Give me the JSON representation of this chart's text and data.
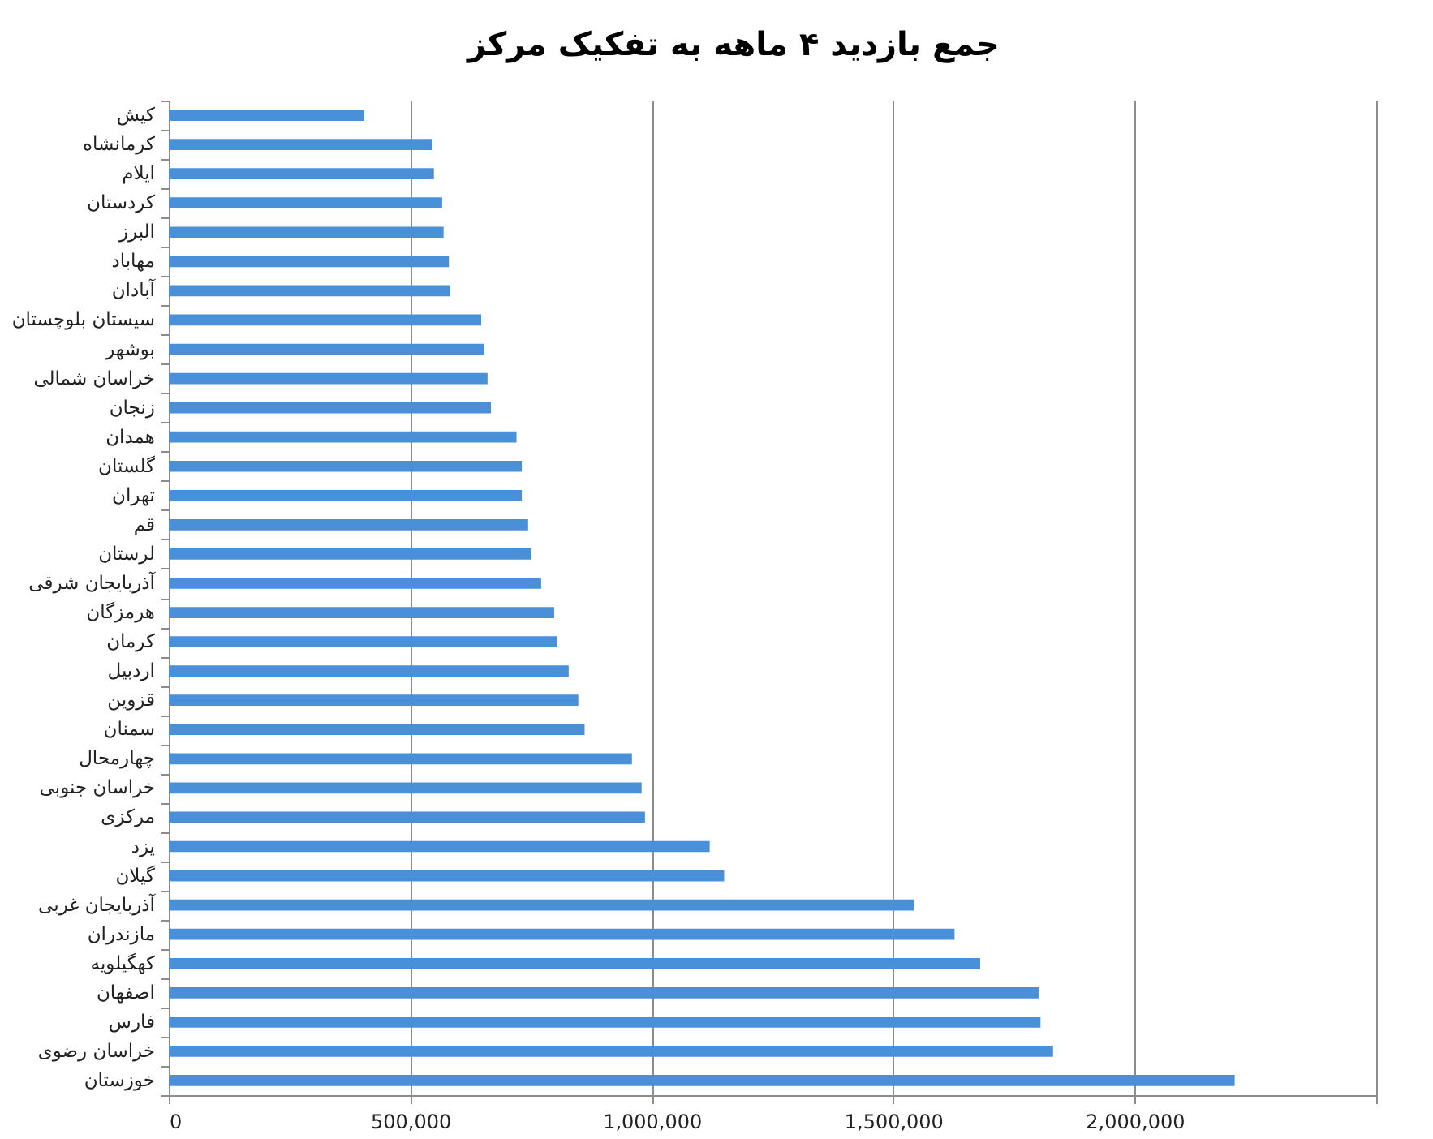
{
  "chart_data": {
    "type": "bar",
    "orientation": "horizontal",
    "title": "جمع بازدید ۴ ماهه به تفکیک مرکز",
    "categories": [
      "کیش",
      "کرمانشاه",
      "ایلام",
      "کردستان",
      "البرز",
      "مهاباد",
      "آبادان",
      "سیستان بلوچستان",
      "بوشهر",
      "خراسان شمالی",
      "زنجان",
      "همدان",
      "گلستان",
      "تهران",
      "قم",
      "لرستان",
      "آذربایجان شرقی",
      "هرمزگان",
      "کرمان",
      "اردبیل",
      "قزوین",
      "سمنان",
      "چهارمحال",
      "خراسان جنوبی",
      "مرکزی",
      "یزد",
      "گیلان",
      "آذربایجان غربی",
      "مازندران",
      "کهگیلویه",
      "اصفهان",
      "فارس",
      "خراسان رضوی",
      "خوزستان"
    ],
    "values": [
      405000,
      546000,
      549000,
      566000,
      569000,
      580000,
      583000,
      647000,
      653000,
      660000,
      667000,
      720000,
      731000,
      731000,
      744000,
      751000,
      771000,
      798000,
      804000,
      828000,
      848000,
      861000,
      959000,
      979000,
      986000,
      1120000,
      1150000,
      1543000,
      1627000,
      1680000,
      1801000,
      1805000,
      1831000,
      2207000
    ],
    "color": "#4a90d9",
    "xlim": [
      0,
      2500000
    ],
    "xticks": [
      0,
      {
        "value": 500000,
        "label": "500,000"
      },
      {
        "value": 1000000,
        "label": "1,000,000"
      },
      {
        "value": 1500000,
        "label": "1,500,000"
      },
      {
        "value": 2000000,
        "label": "2,000,000"
      },
      {
        "value": 2500000,
        "label": null
      }
    ],
    "grid": "x"
  }
}
